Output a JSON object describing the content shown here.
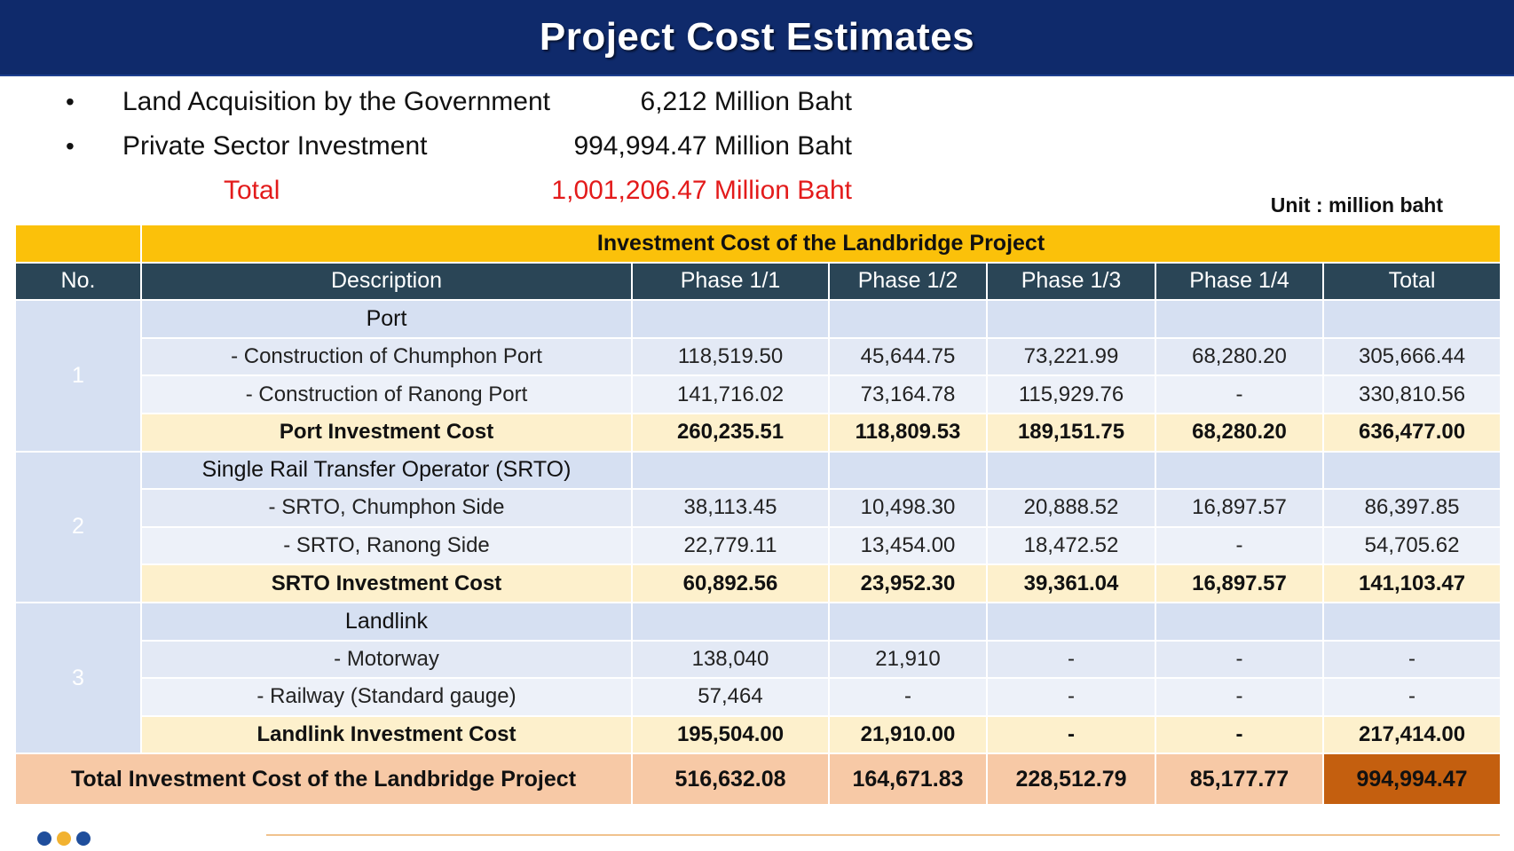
{
  "title": "Project Cost Estimates",
  "summary": {
    "items": [
      {
        "label": "Land Acquisition by the Government",
        "value": "6,212 Million Baht"
      },
      {
        "label": "Private Sector Investment",
        "value": "994,994.47 Million Baht"
      }
    ],
    "total": {
      "label": "Total",
      "value": "1,001,206.47 Million Baht"
    },
    "bullet": "•"
  },
  "unit_note": "Unit : million baht",
  "table": {
    "caption": "Investment Cost of the Landbridge Project",
    "headers": [
      "No.",
      "Description",
      "Phase 1/1",
      "Phase 1/2",
      "Phase 1/3",
      "Phase 1/4",
      "Total"
    ],
    "groups": [
      {
        "no": "1",
        "category": "Port",
        "rows": [
          [
            "- Construction of Chumphon Port",
            "118,519.50",
            "45,644.75",
            "73,221.99",
            "68,280.20",
            "305,666.44"
          ],
          [
            "- Construction of Ranong Port",
            "141,716.02",
            "73,164.78",
            "115,929.76",
            "-",
            "330,810.56"
          ]
        ],
        "subtotal": [
          "Port Investment Cost",
          "260,235.51",
          "118,809.53",
          "189,151.75",
          "68,280.20",
          "636,477.00"
        ]
      },
      {
        "no": "2",
        "category": "Single Rail Transfer Operator (SRTO)",
        "rows": [
          [
            "- SRTO, Chumphon Side",
            "38,113.45",
            "10,498.30",
            "20,888.52",
            "16,897.57",
            "86,397.85"
          ],
          [
            "- SRTO, Ranong Side",
            "22,779.11",
            "13,454.00",
            "18,472.52",
            "-",
            "54,705.62"
          ]
        ],
        "subtotal": [
          "SRTO Investment Cost",
          "60,892.56",
          "23,952.30",
          "39,361.04",
          "16,897.57",
          "141,103.47"
        ]
      },
      {
        "no": "3",
        "category": "Landlink",
        "rows": [
          [
            "- Motorway",
            "138,040",
            "21,910",
            "-",
            "-",
            "-"
          ],
          [
            "- Railway (Standard gauge)",
            "57,464",
            "-",
            "-",
            "-",
            "-"
          ]
        ],
        "subtotal": [
          "Landlink Investment Cost",
          "195,504.00",
          "21,910.00",
          "-",
          "-",
          "217,414.00"
        ]
      }
    ],
    "grand_total": [
      "Total Investment Cost of the Landbridge Project",
      "516,632.08",
      "164,671.83",
      "228,512.79",
      "85,177.77",
      "994,994.47"
    ]
  },
  "colors": {
    "title_bar": "#0f2a6b",
    "caption": "#fbc10a",
    "header": "#2a4556",
    "category_row": "#d6e0f2",
    "subtotal_row": "#fdf0cc",
    "grand_row": "#f7c9a6",
    "grand_total_cell": "#c45f0f",
    "total_text": "#e31b1b"
  }
}
